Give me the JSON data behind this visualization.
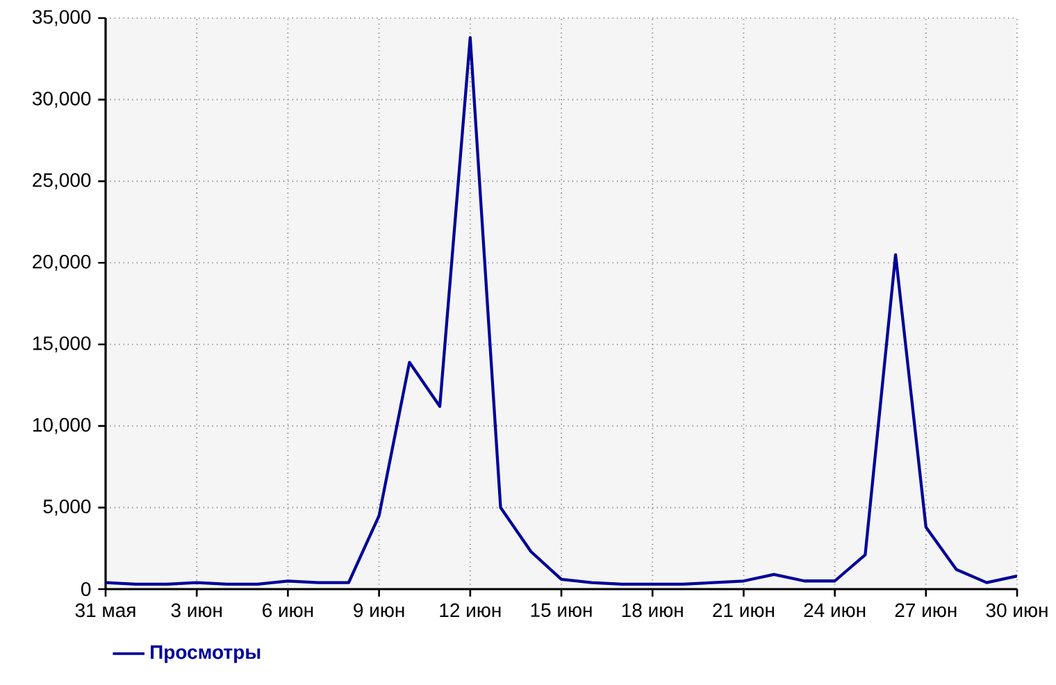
{
  "chart_data": {
    "type": "line",
    "categories": [
      "31 мая",
      null,
      null,
      "3 июн",
      null,
      null,
      "6 июн",
      null,
      null,
      "9 июн",
      null,
      null,
      "12 июн",
      null,
      null,
      "15 июн",
      null,
      null,
      "18 июн",
      null,
      null,
      "21 июн",
      null,
      null,
      "24 июн",
      null,
      null,
      "27 июн",
      null,
      null,
      "30 июн"
    ],
    "series": [
      {
        "name": "Просмотры",
        "color": "#000099",
        "values": [
          400,
          300,
          300,
          400,
          300,
          300,
          500,
          400,
          400,
          4500,
          13900,
          11200,
          33800,
          5000,
          2300,
          600,
          400,
          300,
          300,
          300,
          400,
          500,
          900,
          500,
          500,
          2100,
          20500,
          3800,
          1200,
          400,
          800
        ]
      }
    ],
    "ylim": [
      0,
      35000
    ],
    "yticks": [
      0,
      {
        "value": 5000,
        "label": "5,000"
      },
      {
        "value": 10000,
        "label": "10,000"
      },
      {
        "value": 15000,
        "label": "15,000"
      },
      {
        "value": 20000,
        "label": "20,000"
      },
      {
        "value": 25000,
        "label": "25,000"
      },
      {
        "value": 30000,
        "label": "30,000"
      },
      {
        "value": 35000,
        "label": "35,000"
      }
    ],
    "grid": true,
    "legend": "bottom",
    "marker": "none",
    "line_style": "solid"
  }
}
